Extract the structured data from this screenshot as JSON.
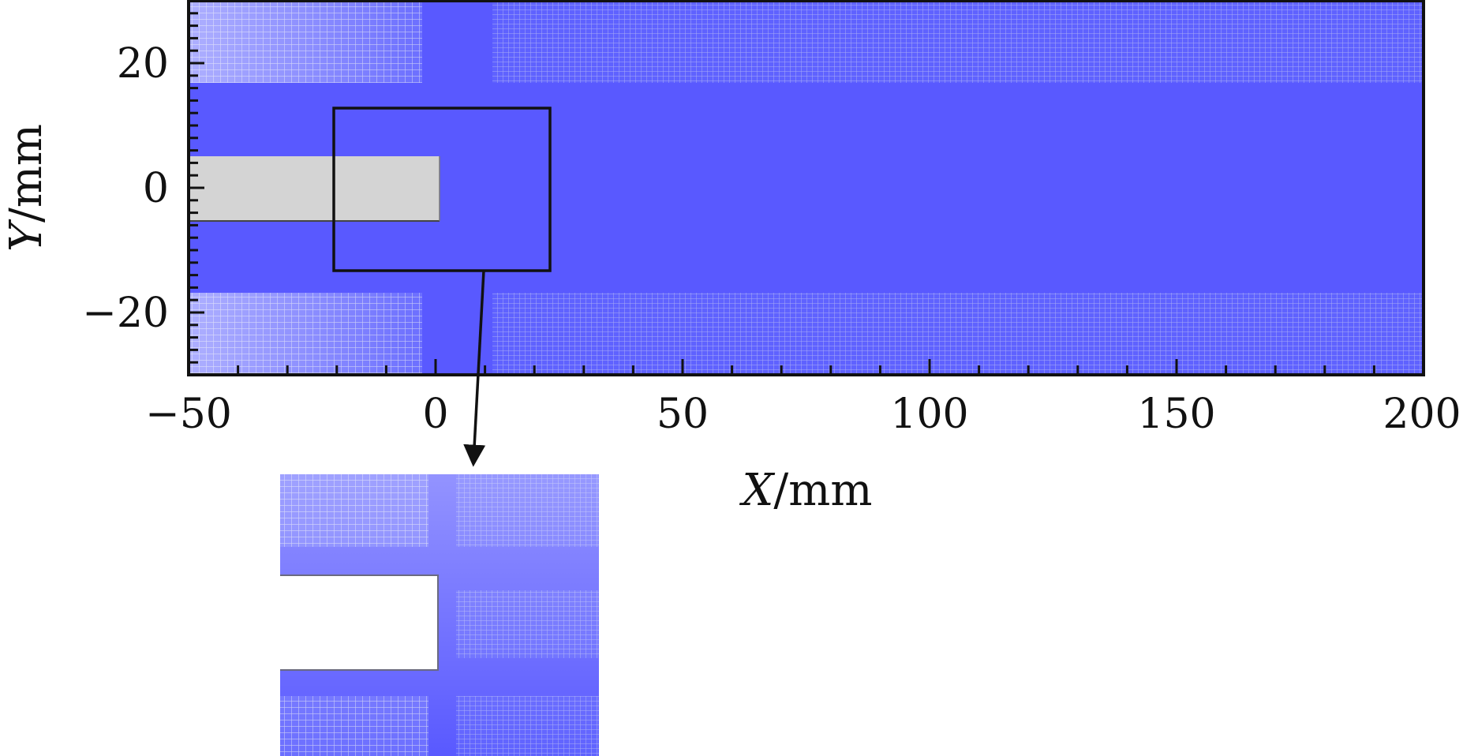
{
  "figure": {
    "x_axis": {
      "label_var": "X",
      "label_unit": "/mm",
      "range": [
        -50,
        200
      ],
      "major_ticks": [
        -50,
        0,
        50,
        100,
        150,
        200
      ],
      "tick_labels": [
        "−50",
        "0",
        "50",
        "100",
        "150",
        "200"
      ],
      "minor_step": 10
    },
    "y_axis": {
      "label_var": "Y",
      "label_unit": "/mm",
      "range": [
        -30,
        30
      ],
      "major_ticks": [
        20,
        0,
        -20
      ],
      "tick_labels": [
        "20",
        "0",
        "−20"
      ],
      "minor_step": 5
    },
    "mesh": {
      "fine_band_y": [
        -17,
        17
      ],
      "fine_band_x_gap": [
        -3,
        11
      ],
      "obstacle_x": [
        -50,
        0
      ],
      "obstacle_y": [
        -5.2,
        5.2
      ]
    },
    "zoom_box": {
      "x": [
        -22,
        22
      ],
      "y": [
        -13,
        13
      ]
    },
    "colors": {
      "mesh": "#5959ff",
      "mesh_light": "#aeb3f5",
      "obstacle": "#d4d4d4",
      "frame": "#111111",
      "background": "#ffffff"
    }
  }
}
